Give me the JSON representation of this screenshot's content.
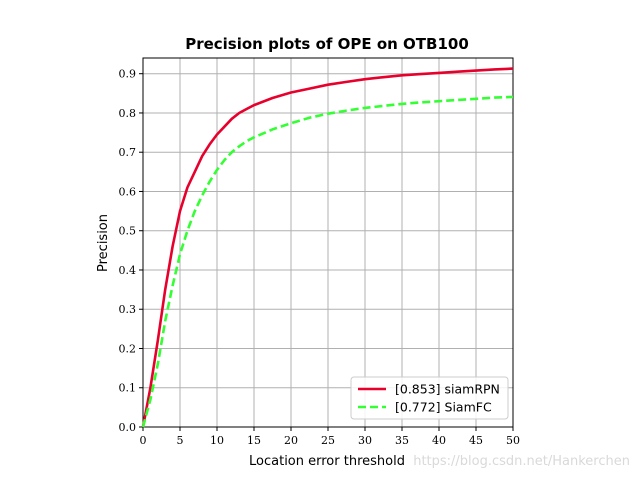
{
  "chart_data": {
    "type": "line",
    "title": "Precision plots of OPE on OTB100",
    "xlabel": "Location error threshold",
    "ylabel": "Precision",
    "xlim": [
      0,
      50
    ],
    "ylim": [
      0,
      0.94
    ],
    "x_ticks": [
      0,
      5,
      10,
      15,
      20,
      25,
      30,
      35,
      40,
      45,
      50
    ],
    "y_ticks": [
      0.0,
      0.1,
      0.2,
      0.3,
      0.4,
      0.5,
      0.6,
      0.7,
      0.8,
      0.9
    ],
    "x_tick_labels": [
      "0",
      "5",
      "10",
      "15",
      "20",
      "25",
      "30",
      "35",
      "40",
      "45",
      "50"
    ],
    "y_tick_labels": [
      "0.0",
      "0.1",
      "0.2",
      "0.3",
      "0.4",
      "0.5",
      "0.6",
      "0.7",
      "0.8",
      "0.9"
    ],
    "grid": true,
    "legend_position": "lower-right",
    "x": [
      0,
      1,
      2,
      3,
      4,
      5,
      6,
      7,
      8,
      9,
      10,
      11,
      12,
      13,
      14,
      15,
      17.5,
      20,
      22.5,
      25,
      27.5,
      30,
      32.5,
      35,
      37.5,
      40,
      42.5,
      45,
      47.5,
      50
    ],
    "series": [
      {
        "name": "[0.853] siamRPN",
        "color": "#e8002d",
        "dash": "solid",
        "values": [
          0.0,
          0.1,
          0.22,
          0.35,
          0.46,
          0.55,
          0.61,
          0.65,
          0.69,
          0.72,
          0.745,
          0.765,
          0.785,
          0.8,
          0.81,
          0.82,
          0.838,
          0.852,
          0.862,
          0.872,
          0.879,
          0.886,
          0.891,
          0.896,
          0.899,
          0.902,
          0.905,
          0.908,
          0.911,
          0.913
        ]
      },
      {
        "name": "[0.772] SiamFC",
        "color": "#33ff33",
        "dash": "dashed",
        "values": [
          0.0,
          0.07,
          0.16,
          0.27,
          0.36,
          0.44,
          0.5,
          0.55,
          0.59,
          0.625,
          0.655,
          0.68,
          0.7,
          0.715,
          0.728,
          0.738,
          0.758,
          0.774,
          0.788,
          0.798,
          0.806,
          0.813,
          0.818,
          0.823,
          0.827,
          0.83,
          0.833,
          0.836,
          0.839,
          0.841
        ]
      }
    ]
  },
  "watermark": "https://blog.csdn.net/Hankerchen"
}
